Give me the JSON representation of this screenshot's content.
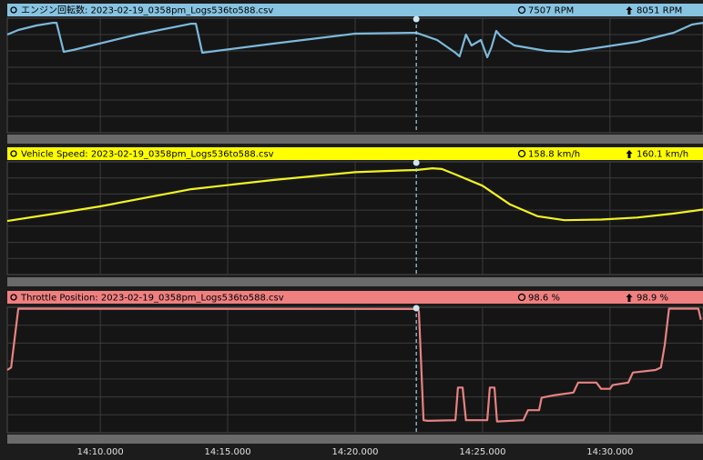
{
  "chart_data": [
    {
      "type": "line",
      "title": "エンジン回転数: 2023-02-19_0358pm_Logs536to588.csv",
      "readout_current": "7507 RPM",
      "readout_max": "8051 RPM",
      "header_color": "#87c4e2",
      "cursor": 51744,
      "xlim": [
        50781,
        52419
      ],
      "ylim": [
        2100,
        8300
      ],
      "grid": true,
      "series": [
        {
          "color": "#7cb9da",
          "x": [
            50781,
            50807,
            50850,
            50889,
            50897,
            50914,
            50936,
            51086,
            51214,
            51225,
            51240,
            51407,
            51600,
            51729,
            51744,
            51793,
            51836,
            51846,
            51861,
            51874,
            51896,
            51911,
            51921,
            51932,
            51943,
            51975,
            52050,
            52104,
            52179,
            52264,
            52350,
            52393,
            52419
          ],
          "values": [
            7414,
            7660,
            7906,
            8051,
            8051,
            6480,
            6578,
            7414,
            8000,
            8000,
            6430,
            6922,
            7464,
            7507,
            7507,
            7119,
            6430,
            6234,
            7414,
            6824,
            7119,
            6184,
            6726,
            7611,
            7316,
            6824,
            6529,
            6480,
            6726,
            7021,
            7513,
            7956,
            8051
          ]
        }
      ]
    },
    {
      "type": "line",
      "title": "Vehicle Speed: 2023-02-19_0358pm_Logs536to588.csv",
      "readout_current": "158.8 km/h",
      "readout_max": "160.1 km/h",
      "header_color": "#ffff00",
      "cursor": 51744,
      "xlim": [
        50781,
        52419
      ],
      "ylim": [
        80,
        165
      ],
      "grid": true,
      "series": [
        {
          "color": "#f2f224",
          "x": [
            50781,
            50893,
            51000,
            51214,
            51407,
            51600,
            51707,
            51744,
            51782,
            51804,
            51836,
            51900,
            51964,
            52029,
            52093,
            52179,
            52264,
            52350,
            52419
          ],
          "values": [
            120.4,
            125.9,
            131.4,
            144.4,
            151.3,
            157.2,
            158.5,
            158.8,
            160.1,
            159.6,
            155.5,
            147,
            133,
            124,
            121,
            121.5,
            123,
            126,
            129
          ]
        }
      ]
    },
    {
      "type": "line",
      "title": "Throttle Position: 2023-02-19_0358pm_Logs536to588.csv",
      "readout_current": "98.6 %",
      "readout_max": "98.9 %",
      "header_color": "#f08080",
      "cursor": 51744,
      "xlim": [
        50781,
        52419
      ],
      "ylim": [
        0,
        100
      ],
      "grid": true,
      "xticks": [
        {
          "value": 51000,
          "label": "14:10.000"
        },
        {
          "value": 51300,
          "label": "14:15.000"
        },
        {
          "value": 51600,
          "label": "14:20.000"
        },
        {
          "value": 51900,
          "label": "14:25.000"
        },
        {
          "value": 52200,
          "label": "14:30.000"
        }
      ],
      "series": [
        {
          "color": "#e88282",
          "x": [
            50781,
            50790,
            50807,
            51744,
            51750,
            51761,
            51771,
            51836,
            51842,
            51853,
            51861,
            51911,
            51917,
            51928,
            51934,
            51996,
            52007,
            52033,
            52039,
            52071,
            52114,
            52125,
            52168,
            52179,
            52200,
            52206,
            52243,
            52254,
            52307,
            52320,
            52329,
            52339,
            52408,
            52414
          ],
          "values": [
            50,
            52,
            98.9,
            98.6,
            97,
            10,
            9.5,
            10,
            36,
            36,
            10,
            10,
            36,
            36,
            9,
            10,
            18,
            18,
            28,
            30,
            32,
            40,
            40,
            35,
            35,
            38,
            40,
            48,
            50,
            52,
            70,
            98.9,
            98.9,
            90
          ]
        }
      ]
    }
  ]
}
